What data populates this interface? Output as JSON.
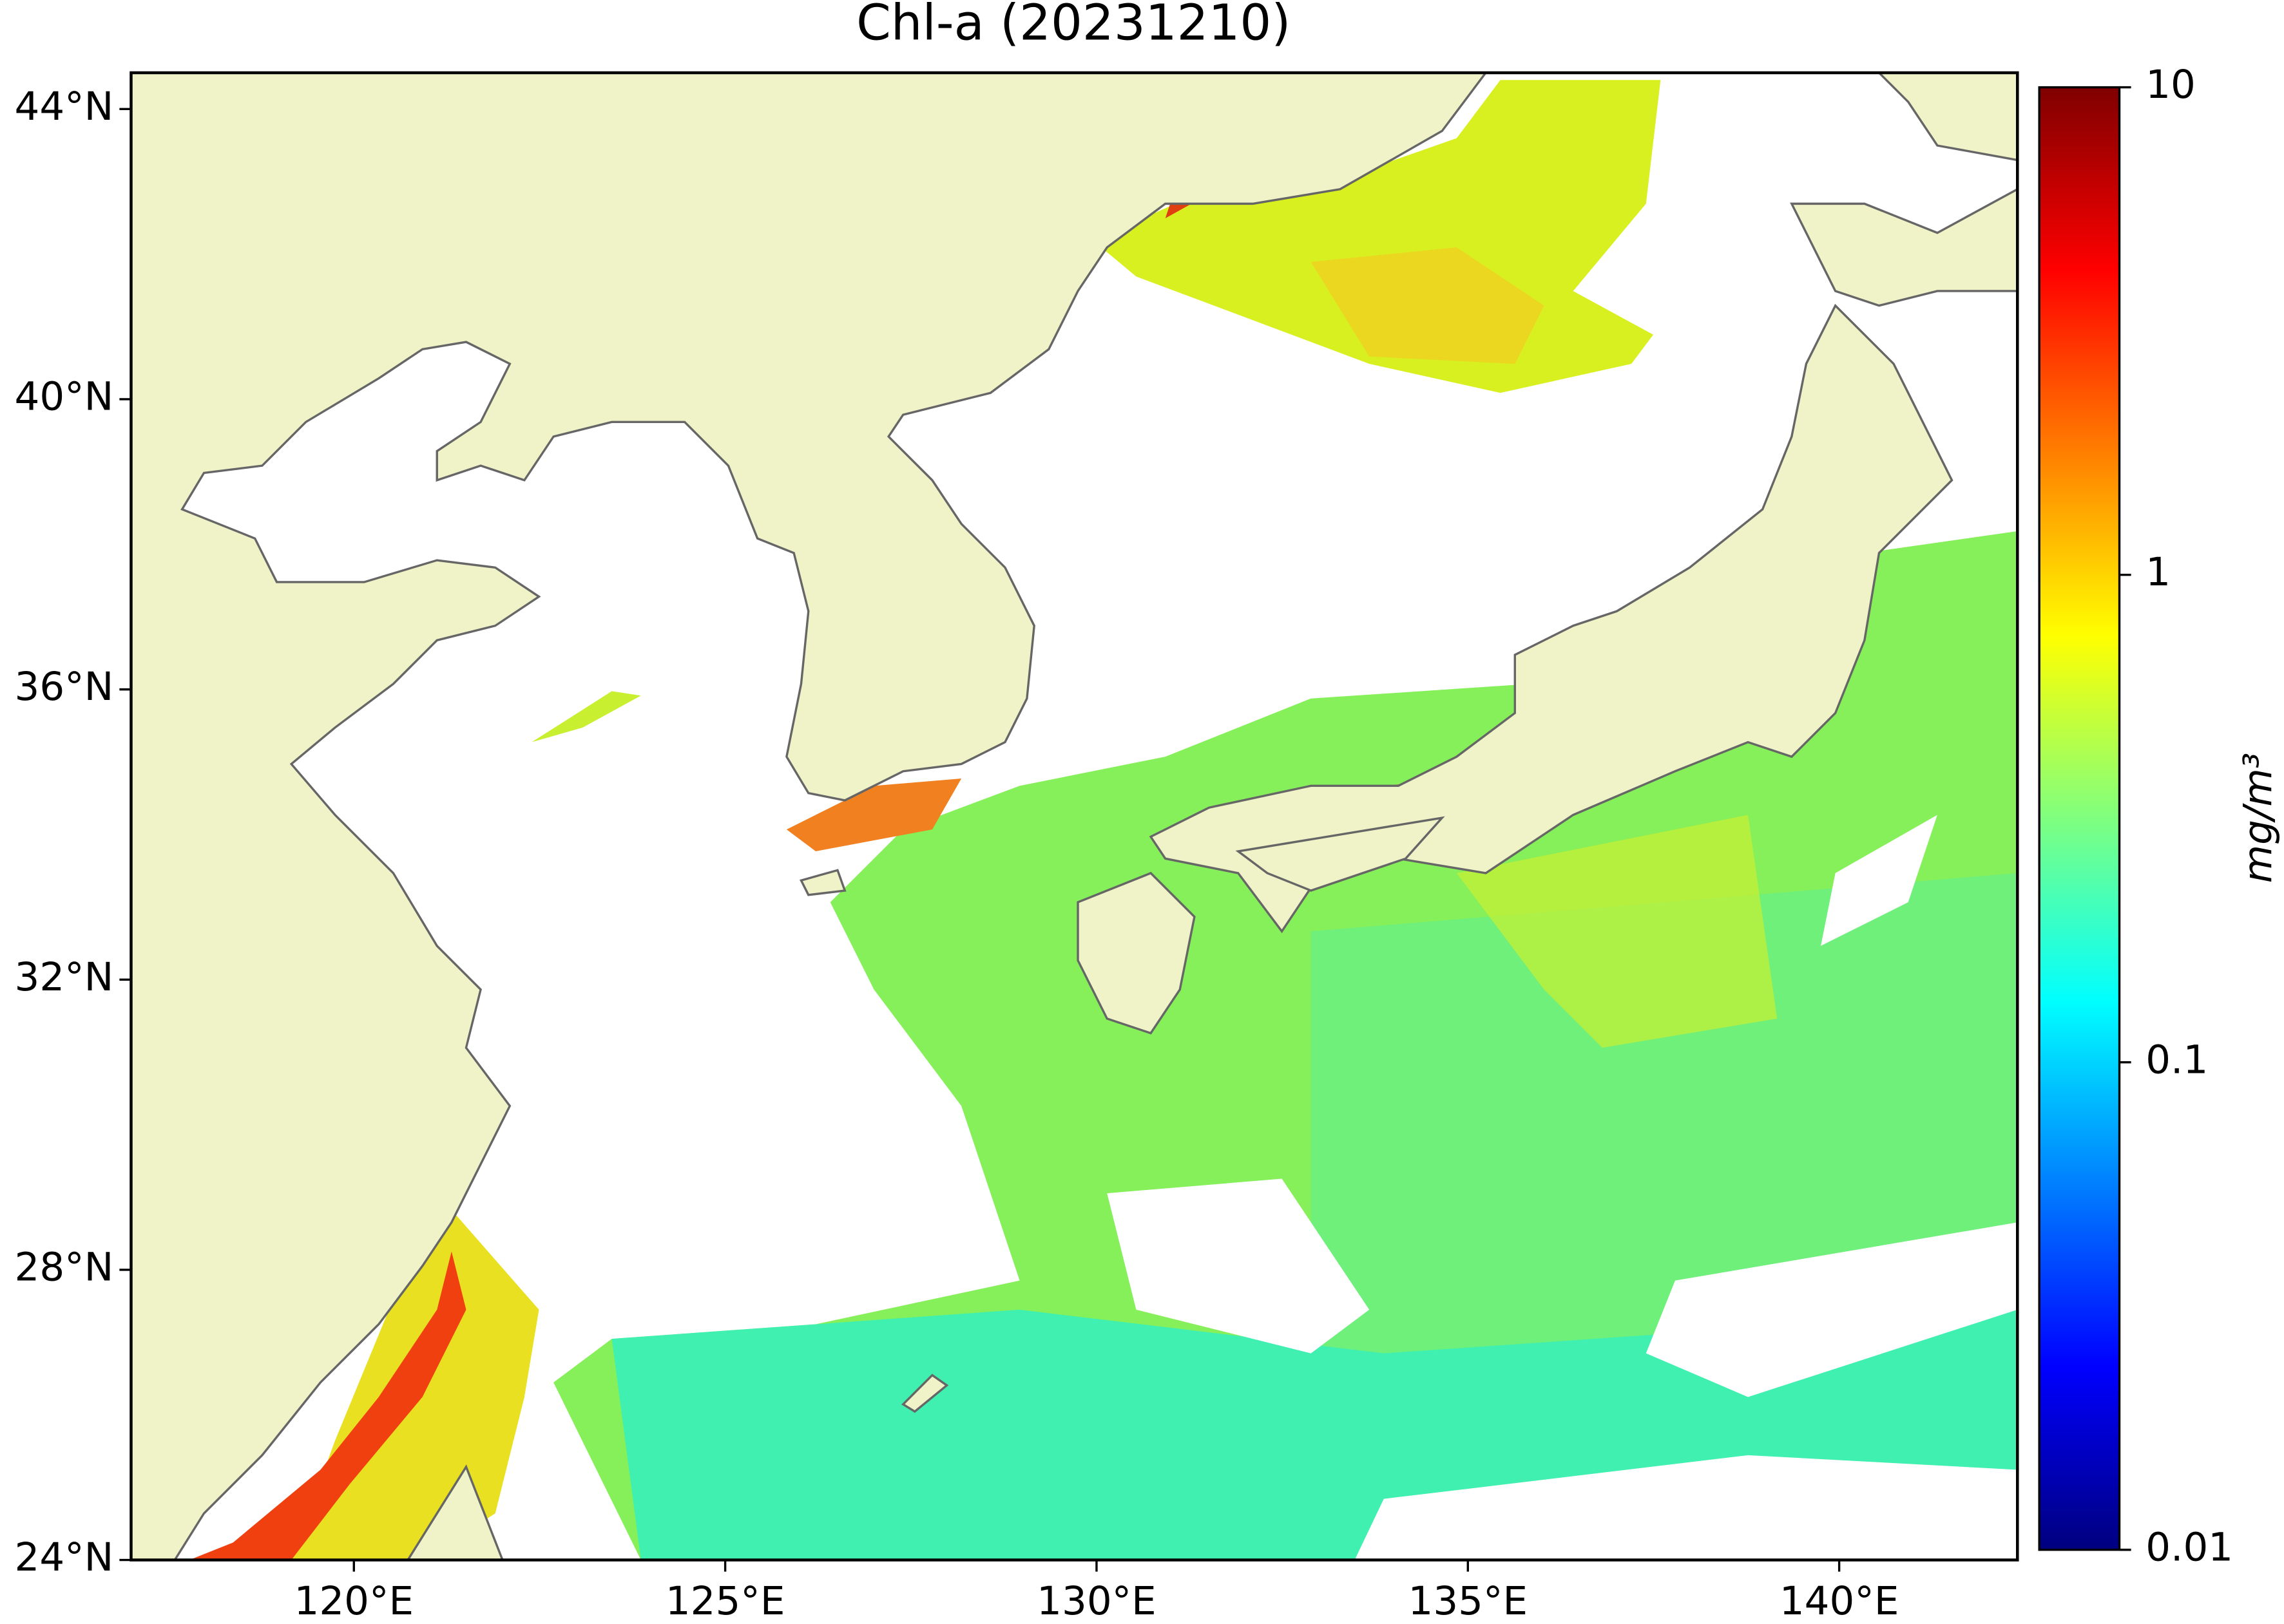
{
  "chart_data": {
    "type": "map",
    "title": "Chl-a (20231210)",
    "xlim": [
      117,
      142.4
    ],
    "ylim": [
      24,
      44.5
    ],
    "xticks": [
      {
        "value": 120,
        "label": "120°E"
      },
      {
        "value": 125,
        "label": "125°E"
      },
      {
        "value": 130,
        "label": "130°E"
      },
      {
        "value": 135,
        "label": "135°E"
      },
      {
        "value": 140,
        "label": "140°E"
      }
    ],
    "yticks": [
      {
        "value": 24,
        "label": "24°N"
      },
      {
        "value": 28,
        "label": "28°N"
      },
      {
        "value": 32,
        "label": "32°N"
      },
      {
        "value": 36,
        "label": "36°N"
      },
      {
        "value": 40,
        "label": "40°N"
      },
      {
        "value": 44,
        "label": "44°N"
      }
    ],
    "colorbar": {
      "label": "mg/m³",
      "log": true,
      "clim": [
        0.01,
        10
      ],
      "ticks": [
        0.01,
        0.1,
        1,
        10
      ],
      "colormap": "jet"
    },
    "land_color": "#f0f3c8",
    "coast_color": "#666666"
  }
}
